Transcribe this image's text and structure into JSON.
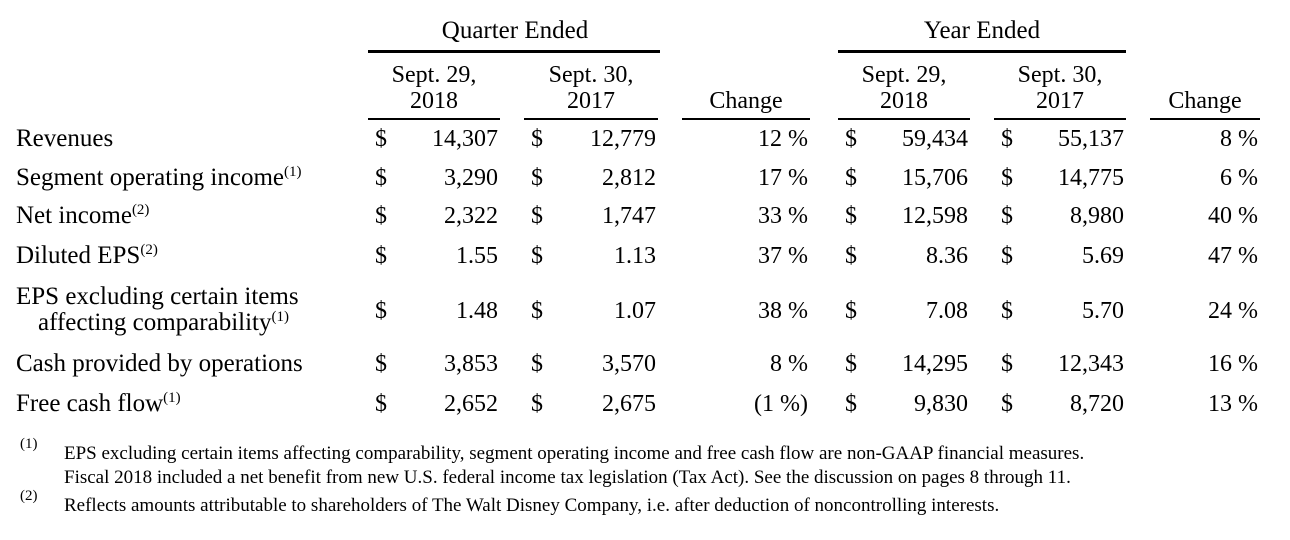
{
  "headers": {
    "quarter_group": "Quarter Ended",
    "year_group": "Year Ended",
    "q_col1": [
      "Sept. 29,",
      "2018"
    ],
    "q_col2": [
      "Sept. 30,",
      "2017"
    ],
    "q_change": "Change",
    "y_col1": [
      "Sept. 29,",
      "2018"
    ],
    "y_col2": [
      "Sept. 30,",
      "2017"
    ],
    "y_change": "Change"
  },
  "currency_symbol": "$",
  "rows": [
    {
      "label": "Revenues",
      "sup": "",
      "q1": "14,307",
      "q2": "12,779",
      "qchg": "12 %",
      "y1": "59,434",
      "y2": "55,137",
      "ychg": "8 %",
      "tight": true
    },
    {
      "label": "Segment operating income",
      "sup": "(1)",
      "q1": "3,290",
      "q2": "2,812",
      "qchg": "17 %",
      "y1": "15,706",
      "y2": "14,775",
      "ychg": "6 %"
    },
    {
      "label": "Net income",
      "sup": "(2)",
      "q1": "2,322",
      "q2": "1,747",
      "qchg": "33 %",
      "y1": "12,598",
      "y2": "8,980",
      "ychg": "40 %"
    },
    {
      "label": "Diluted EPS",
      "sup": "(2)",
      "q1": "1.55",
      "q2": "1.13",
      "qchg": "37 %",
      "y1": "8.36",
      "y2": "5.69",
      "ychg": "47 %"
    },
    {
      "label": "EPS excluding certain items",
      "label2": "affecting comparability",
      "sup": "(1)",
      "q1": "1.48",
      "q2": "1.07",
      "qchg": "38 %",
      "y1": "7.08",
      "y2": "5.70",
      "ychg": "24 %"
    },
    {
      "label": "Cash provided by operations",
      "sup": "",
      "q1": "3,853",
      "q2": "3,570",
      "qchg": "8 %",
      "y1": "14,295",
      "y2": "12,343",
      "ychg": "16 %"
    },
    {
      "label": "Free cash flow",
      "sup": "(1)",
      "q1": "2,652",
      "q2": "2,675",
      "qchg": "(1 %)",
      "y1": "9,830",
      "y2": "8,720",
      "ychg": "13 %"
    }
  ],
  "footnotes": [
    {
      "mark": "(1)",
      "lines": [
        "EPS excluding certain items affecting comparability, segment operating income and free cash flow are non-GAAP financial measures.",
        "Fiscal 2018 included a net benefit from new U.S. federal income tax legislation (Tax Act). See the discussion on pages 8 through 11."
      ]
    },
    {
      "mark": "(2)",
      "lines": [
        "Reflects amounts attributable to shareholders of The Walt Disney Company, i.e. after deduction of noncontrolling interests."
      ]
    }
  ]
}
